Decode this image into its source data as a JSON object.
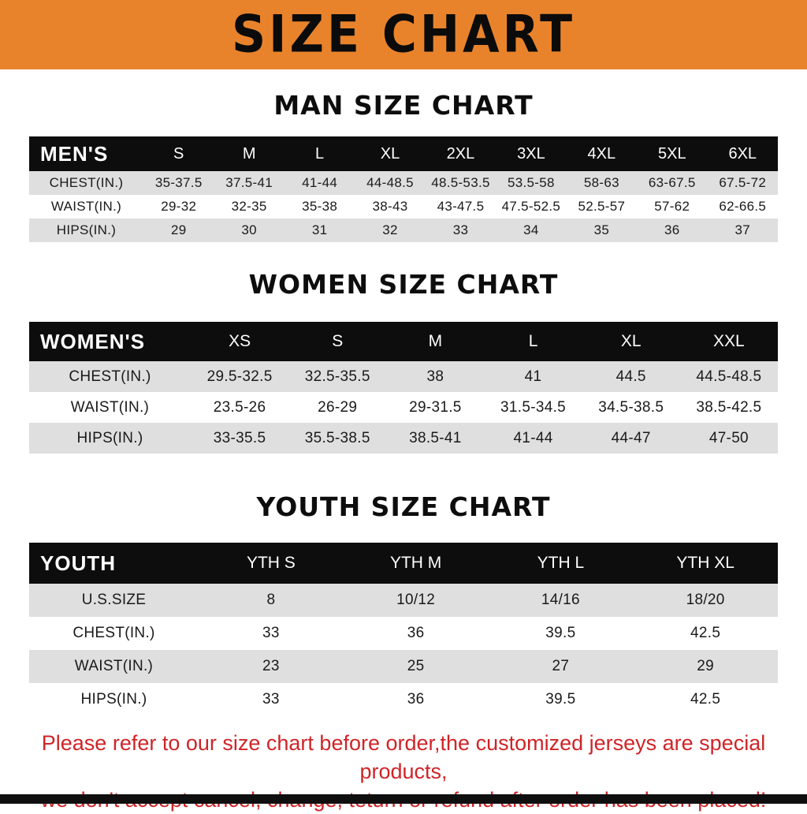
{
  "banner": {
    "title": "SIZE CHART",
    "bg_color": "#E8832C"
  },
  "colors": {
    "table_header_bg": "#0D0D0D",
    "row_alt_bg": "#DFDFDF",
    "footer_text": "#CF2428"
  },
  "chart_data": [
    {
      "type": "table",
      "title": "MAN SIZE CHART",
      "corner_label": "MEN'S",
      "columns": [
        "S",
        "M",
        "L",
        "XL",
        "2XL",
        "3XL",
        "4XL",
        "5XL",
        "6XL"
      ],
      "rows": [
        {
          "label": "CHEST(IN.)",
          "values": [
            "35-37.5",
            "37.5-41",
            "41-44",
            "44-48.5",
            "48.5-53.5",
            "53.5-58",
            "58-63",
            "63-67.5",
            "67.5-72"
          ]
        },
        {
          "label": "WAIST(IN.)",
          "values": [
            "29-32",
            "32-35",
            "35-38",
            "38-43",
            "43-47.5",
            "47.5-52.5",
            "52.5-57",
            "57-62",
            "62-66.5"
          ]
        },
        {
          "label": "HIPS(IN.)",
          "values": [
            "29",
            "30",
            "31",
            "32",
            "33",
            "34",
            "35",
            "36",
            "37"
          ]
        }
      ]
    },
    {
      "type": "table",
      "title": "WOMEN SIZE CHART",
      "corner_label": "WOMEN'S",
      "columns": [
        "XS",
        "S",
        "M",
        "L",
        "XL",
        "XXL"
      ],
      "rows": [
        {
          "label": "CHEST(IN.)",
          "values": [
            "29.5-32.5",
            "32.5-35.5",
            "38",
            "41",
            "44.5",
            "44.5-48.5"
          ]
        },
        {
          "label": "WAIST(IN.)",
          "values": [
            "23.5-26",
            "26-29",
            "29-31.5",
            "31.5-34.5",
            "34.5-38.5",
            "38.5-42.5"
          ]
        },
        {
          "label": "HIPS(IN.)",
          "values": [
            "33-35.5",
            "35.5-38.5",
            "38.5-41",
            "41-44",
            "44-47",
            "47-50"
          ]
        }
      ]
    },
    {
      "type": "table",
      "title": "YOUTH SIZE CHART",
      "corner_label": "YOUTH",
      "columns": [
        "YTH S",
        "YTH M",
        "YTH L",
        "YTH XL"
      ],
      "rows": [
        {
          "label": "U.S.SIZE",
          "values": [
            "8",
            "10/12",
            "14/16",
            "18/20"
          ]
        },
        {
          "label": "CHEST(IN.)",
          "values": [
            "33",
            "36",
            "39.5",
            "42.5"
          ]
        },
        {
          "label": "WAIST(IN.)",
          "values": [
            "23",
            "25",
            "27",
            "29"
          ]
        },
        {
          "label": "HIPS(IN.)",
          "values": [
            "33",
            "36",
            "39.5",
            "42.5"
          ]
        }
      ]
    }
  ],
  "footer": {
    "line1": "Please refer to our size chart before order,the customized jerseys are special products,",
    "line2": "we don't accept cancel, change, teturn or refund after order has been placed!"
  }
}
